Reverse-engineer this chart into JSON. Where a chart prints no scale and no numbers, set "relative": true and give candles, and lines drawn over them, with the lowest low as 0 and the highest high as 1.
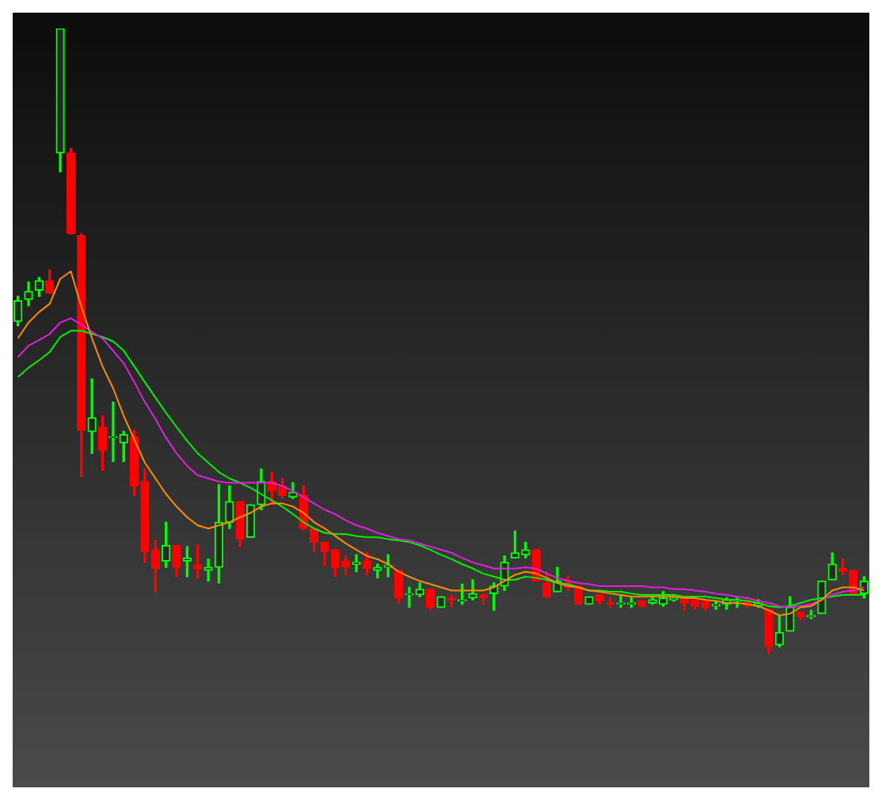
{
  "chart_data": {
    "type": "candlestick",
    "relative": true,
    "tick_labels": false,
    "categories": [
      null,
      null,
      null,
      null,
      null,
      null,
      null,
      null,
      null,
      null,
      null,
      null,
      null,
      null,
      null,
      null,
      null,
      null,
      null,
      null,
      null,
      null,
      null,
      null,
      null,
      null,
      null,
      null,
      null,
      null,
      null,
      null,
      null,
      null,
      null,
      null,
      null,
      null,
      null,
      null,
      null,
      null,
      null,
      null,
      null,
      null,
      null,
      null,
      null,
      null,
      null,
      null,
      null,
      null,
      null,
      null,
      null,
      null,
      null,
      null,
      null,
      null,
      null,
      null,
      null,
      null,
      null,
      null,
      null,
      null,
      null,
      null,
      null,
      null,
      null,
      null,
      null,
      null,
      null,
      null,
      null
    ],
    "ohlc": [
      [
        0.532,
        0.572,
        0.525,
        0.565
      ],
      [
        0.567,
        0.595,
        0.557,
        0.58
      ],
      [
        0.582,
        0.602,
        0.572,
        0.597
      ],
      [
        0.597,
        0.614,
        0.577,
        0.577
      ],
      [
        0.801,
        1.0,
        0.771,
        1.0
      ],
      [
        0.801,
        0.808,
        0.672,
        0.672
      ],
      [
        0.669,
        0.672,
        0.284,
        0.358
      ],
      [
        0.356,
        0.44,
        0.321,
        0.378
      ],
      [
        0.363,
        0.381,
        0.294,
        0.326
      ],
      [
        0.346,
        0.403,
        0.308,
        0.348
      ],
      [
        0.338,
        0.356,
        0.308,
        0.351
      ],
      [
        0.348,
        0.358,
        0.254,
        0.269
      ],
      [
        0.276,
        0.296,
        0.147,
        0.164
      ],
      [
        0.167,
        0.182,
        0.1,
        0.137
      ],
      [
        0.149,
        0.211,
        0.139,
        0.174
      ],
      [
        0.174,
        0.174,
        0.124,
        0.139
      ],
      [
        0.149,
        0.172,
        0.124,
        0.154
      ],
      [
        0.142,
        0.174,
        0.122,
        0.137
      ],
      [
        0.134,
        0.152,
        0.117,
        0.139
      ],
      [
        0.139,
        0.271,
        0.114,
        0.211
      ],
      [
        0.211,
        0.269,
        0.201,
        0.244
      ],
      [
        0.244,
        0.244,
        0.172,
        0.184
      ],
      [
        0.187,
        0.239,
        0.187,
        0.239
      ],
      [
        0.239,
        0.296,
        0.231,
        0.276
      ],
      [
        0.276,
        0.291,
        0.239,
        0.261
      ],
      [
        0.269,
        0.281,
        0.249,
        0.254
      ],
      [
        0.251,
        0.274,
        0.249,
        0.259
      ],
      [
        0.254,
        0.269,
        0.199,
        0.201
      ],
      [
        0.201,
        0.201,
        0.164,
        0.179
      ],
      [
        0.179,
        0.179,
        0.142,
        0.164
      ],
      [
        0.167,
        0.167,
        0.124,
        0.139
      ],
      [
        0.149,
        0.157,
        0.127,
        0.139
      ],
      [
        0.144,
        0.159,
        0.132,
        0.147
      ],
      [
        0.149,
        0.162,
        0.127,
        0.137
      ],
      [
        0.134,
        0.144,
        0.122,
        0.139
      ],
      [
        0.139,
        0.159,
        0.124,
        0.142
      ],
      [
        0.134,
        0.134,
        0.082,
        0.09
      ],
      [
        0.095,
        0.107,
        0.075,
        0.097
      ],
      [
        0.095,
        0.114,
        0.092,
        0.104
      ],
      [
        0.104,
        0.104,
        0.072,
        0.075
      ],
      [
        0.075,
        0.092,
        0.075,
        0.092
      ],
      [
        0.09,
        0.095,
        0.075,
        0.087
      ],
      [
        0.085,
        0.112,
        0.08,
        0.087
      ],
      [
        0.09,
        0.119,
        0.087,
        0.097
      ],
      [
        0.095,
        0.095,
        0.08,
        0.09
      ],
      [
        0.097,
        0.114,
        0.07,
        0.109
      ],
      [
        0.109,
        0.157,
        0.102,
        0.147
      ],
      [
        0.154,
        0.197,
        0.154,
        0.162
      ],
      [
        0.159,
        0.179,
        0.154,
        0.167
      ],
      [
        0.167,
        0.167,
        0.117,
        0.117
      ],
      [
        0.114,
        0.132,
        0.09,
        0.092
      ],
      [
        0.1,
        0.139,
        0.1,
        0.117
      ],
      [
        0.114,
        0.124,
        0.102,
        0.107
      ],
      [
        0.109,
        0.109,
        0.08,
        0.08
      ],
      [
        0.08,
        0.092,
        0.08,
        0.092
      ],
      [
        0.095,
        0.095,
        0.08,
        0.085
      ],
      [
        0.082,
        0.09,
        0.075,
        0.08
      ],
      [
        0.08,
        0.095,
        0.075,
        0.082
      ],
      [
        0.08,
        0.09,
        0.075,
        0.082
      ],
      [
        0.085,
        0.085,
        0.075,
        0.077
      ],
      [
        0.082,
        0.092,
        0.08,
        0.087
      ],
      [
        0.08,
        0.1,
        0.077,
        0.09
      ],
      [
        0.087,
        0.092,
        0.085,
        0.09
      ],
      [
        0.092,
        0.092,
        0.07,
        0.082
      ],
      [
        0.087,
        0.087,
        0.072,
        0.077
      ],
      [
        0.085,
        0.085,
        0.07,
        0.075
      ],
      [
        0.077,
        0.085,
        0.072,
        0.08
      ],
      [
        0.08,
        0.09,
        0.072,
        0.087
      ],
      [
        0.085,
        0.09,
        0.075,
        0.087
      ],
      [
        0.085,
        0.087,
        0.075,
        0.077
      ],
      [
        0.077,
        0.087,
        0.075,
        0.082
      ],
      [
        0.072,
        0.072,
        0.0,
        0.012
      ],
      [
        0.015,
        0.062,
        0.012,
        0.035
      ],
      [
        0.037,
        0.092,
        0.037,
        0.075
      ],
      [
        0.067,
        0.067,
        0.055,
        0.06
      ],
      [
        0.06,
        0.07,
        0.057,
        0.062
      ],
      [
        0.065,
        0.117,
        0.065,
        0.117
      ],
      [
        0.119,
        0.162,
        0.119,
        0.144
      ],
      [
        0.137,
        0.152,
        0.127,
        0.132
      ],
      [
        0.134,
        0.134,
        0.097,
        0.097
      ],
      [
        0.097,
        0.124,
        0.09,
        0.117
      ]
    ],
    "colors": [
      "#00ff00",
      "#00ff00",
      "#00ff00",
      "#ff0000",
      "#00ff00",
      "#ff0000",
      "#ff0000",
      "#00ff00",
      "#ff0000",
      "#00ff00",
      "#00ff00",
      "#ff0000",
      "#ff0000",
      "#ff0000",
      "#00ff00",
      "#ff0000",
      "#00ff00",
      "#ff0000",
      "#00ff00",
      "#00ff00",
      "#00ff00",
      "#ff0000",
      "#00ff00",
      "#00ff00",
      "#ff0000",
      "#ff0000",
      "#00ff00",
      "#ff0000",
      "#ff0000",
      "#ff0000",
      "#ff0000",
      "#ff0000",
      "#00ff00",
      "#ff0000",
      "#00ff00",
      "#00ff00",
      "#ff0000",
      "#00ff00",
      "#00ff00",
      "#ff0000",
      "#00ff00",
      "#ff0000",
      "#00ff00",
      "#00ff00",
      "#ff0000",
      "#00ff00",
      "#00ff00",
      "#00ff00",
      "#00ff00",
      "#ff0000",
      "#ff0000",
      "#00ff00",
      "#ff0000",
      "#ff0000",
      "#00ff00",
      "#ff0000",
      "#ff0000",
      "#00ff00",
      "#00ff00",
      "#ff0000",
      "#00ff00",
      "#00ff00",
      "#00ff00",
      "#ff0000",
      "#ff0000",
      "#ff0000",
      "#00ff00",
      "#00ff00",
      "#00ff00",
      "#ff0000",
      "#00ff00",
      "#ff0000",
      "#00ff00",
      "#00ff00",
      "#ff0000",
      "#00ff00",
      "#00ff00",
      "#00ff00",
      "#ff0000",
      "#ff0000",
      "#00ff00"
    ],
    "series": [
      {
        "type": "line",
        "color": "#ff8c00",
        "values": [
          0.505,
          0.53,
          0.547,
          0.56,
          0.6,
          0.612,
          0.555,
          0.505,
          0.46,
          0.425,
          0.381,
          0.343,
          0.306,
          0.281,
          0.256,
          0.236,
          0.219,
          0.206,
          0.201,
          0.206,
          0.211,
          0.219,
          0.226,
          0.236,
          0.241,
          0.241,
          0.236,
          0.226,
          0.211,
          0.201,
          0.189,
          0.177,
          0.167,
          0.157,
          0.152,
          0.144,
          0.132,
          0.124,
          0.117,
          0.112,
          0.107,
          0.102,
          0.102,
          0.102,
          0.102,
          0.107,
          0.117,
          0.127,
          0.132,
          0.129,
          0.122,
          0.114,
          0.109,
          0.107,
          0.102,
          0.1,
          0.097,
          0.095,
          0.092,
          0.092,
          0.092,
          0.092,
          0.092,
          0.09,
          0.09,
          0.087,
          0.085,
          0.082,
          0.082,
          0.08,
          0.077,
          0.07,
          0.062,
          0.065,
          0.075,
          0.077,
          0.087,
          0.102,
          0.107,
          0.107,
          0.102
        ]
      },
      {
        "type": "line",
        "color": "#e020e0",
        "values": [
          0.475,
          0.493,
          0.502,
          0.512,
          0.53,
          0.537,
          0.527,
          0.515,
          0.505,
          0.485,
          0.465,
          0.435,
          0.403,
          0.376,
          0.346,
          0.321,
          0.301,
          0.286,
          0.281,
          0.276,
          0.274,
          0.274,
          0.274,
          0.274,
          0.274,
          0.269,
          0.261,
          0.251,
          0.241,
          0.231,
          0.224,
          0.214,
          0.206,
          0.201,
          0.194,
          0.189,
          0.184,
          0.182,
          0.177,
          0.172,
          0.167,
          0.162,
          0.154,
          0.147,
          0.142,
          0.137,
          0.137,
          0.137,
          0.139,
          0.137,
          0.129,
          0.122,
          0.117,
          0.114,
          0.112,
          0.109,
          0.109,
          0.109,
          0.109,
          0.109,
          0.107,
          0.107,
          0.104,
          0.104,
          0.102,
          0.1,
          0.097,
          0.095,
          0.092,
          0.09,
          0.085,
          0.082,
          0.077,
          0.075,
          0.077,
          0.08,
          0.087,
          0.095,
          0.1,
          0.102,
          0.107
        ]
      },
      {
        "type": "line",
        "color": "#00ee00",
        "values": [
          0.443,
          0.458,
          0.47,
          0.483,
          0.507,
          0.517,
          0.517,
          0.512,
          0.507,
          0.5,
          0.485,
          0.46,
          0.435,
          0.41,
          0.386,
          0.363,
          0.341,
          0.321,
          0.306,
          0.291,
          0.281,
          0.274,
          0.266,
          0.256,
          0.246,
          0.236,
          0.224,
          0.211,
          0.201,
          0.194,
          0.192,
          0.192,
          0.189,
          0.187,
          0.187,
          0.184,
          0.182,
          0.179,
          0.174,
          0.167,
          0.159,
          0.152,
          0.144,
          0.137,
          0.129,
          0.124,
          0.119,
          0.119,
          0.124,
          0.122,
          0.119,
          0.114,
          0.112,
          0.107,
          0.102,
          0.102,
          0.1,
          0.1,
          0.097,
          0.095,
          0.095,
          0.095,
          0.095,
          0.092,
          0.092,
          0.092,
          0.09,
          0.087,
          0.087,
          0.085,
          0.082,
          0.077,
          0.075,
          0.077,
          0.082,
          0.087,
          0.09,
          0.092,
          0.095,
          0.095,
          0.095
        ]
      }
    ]
  }
}
